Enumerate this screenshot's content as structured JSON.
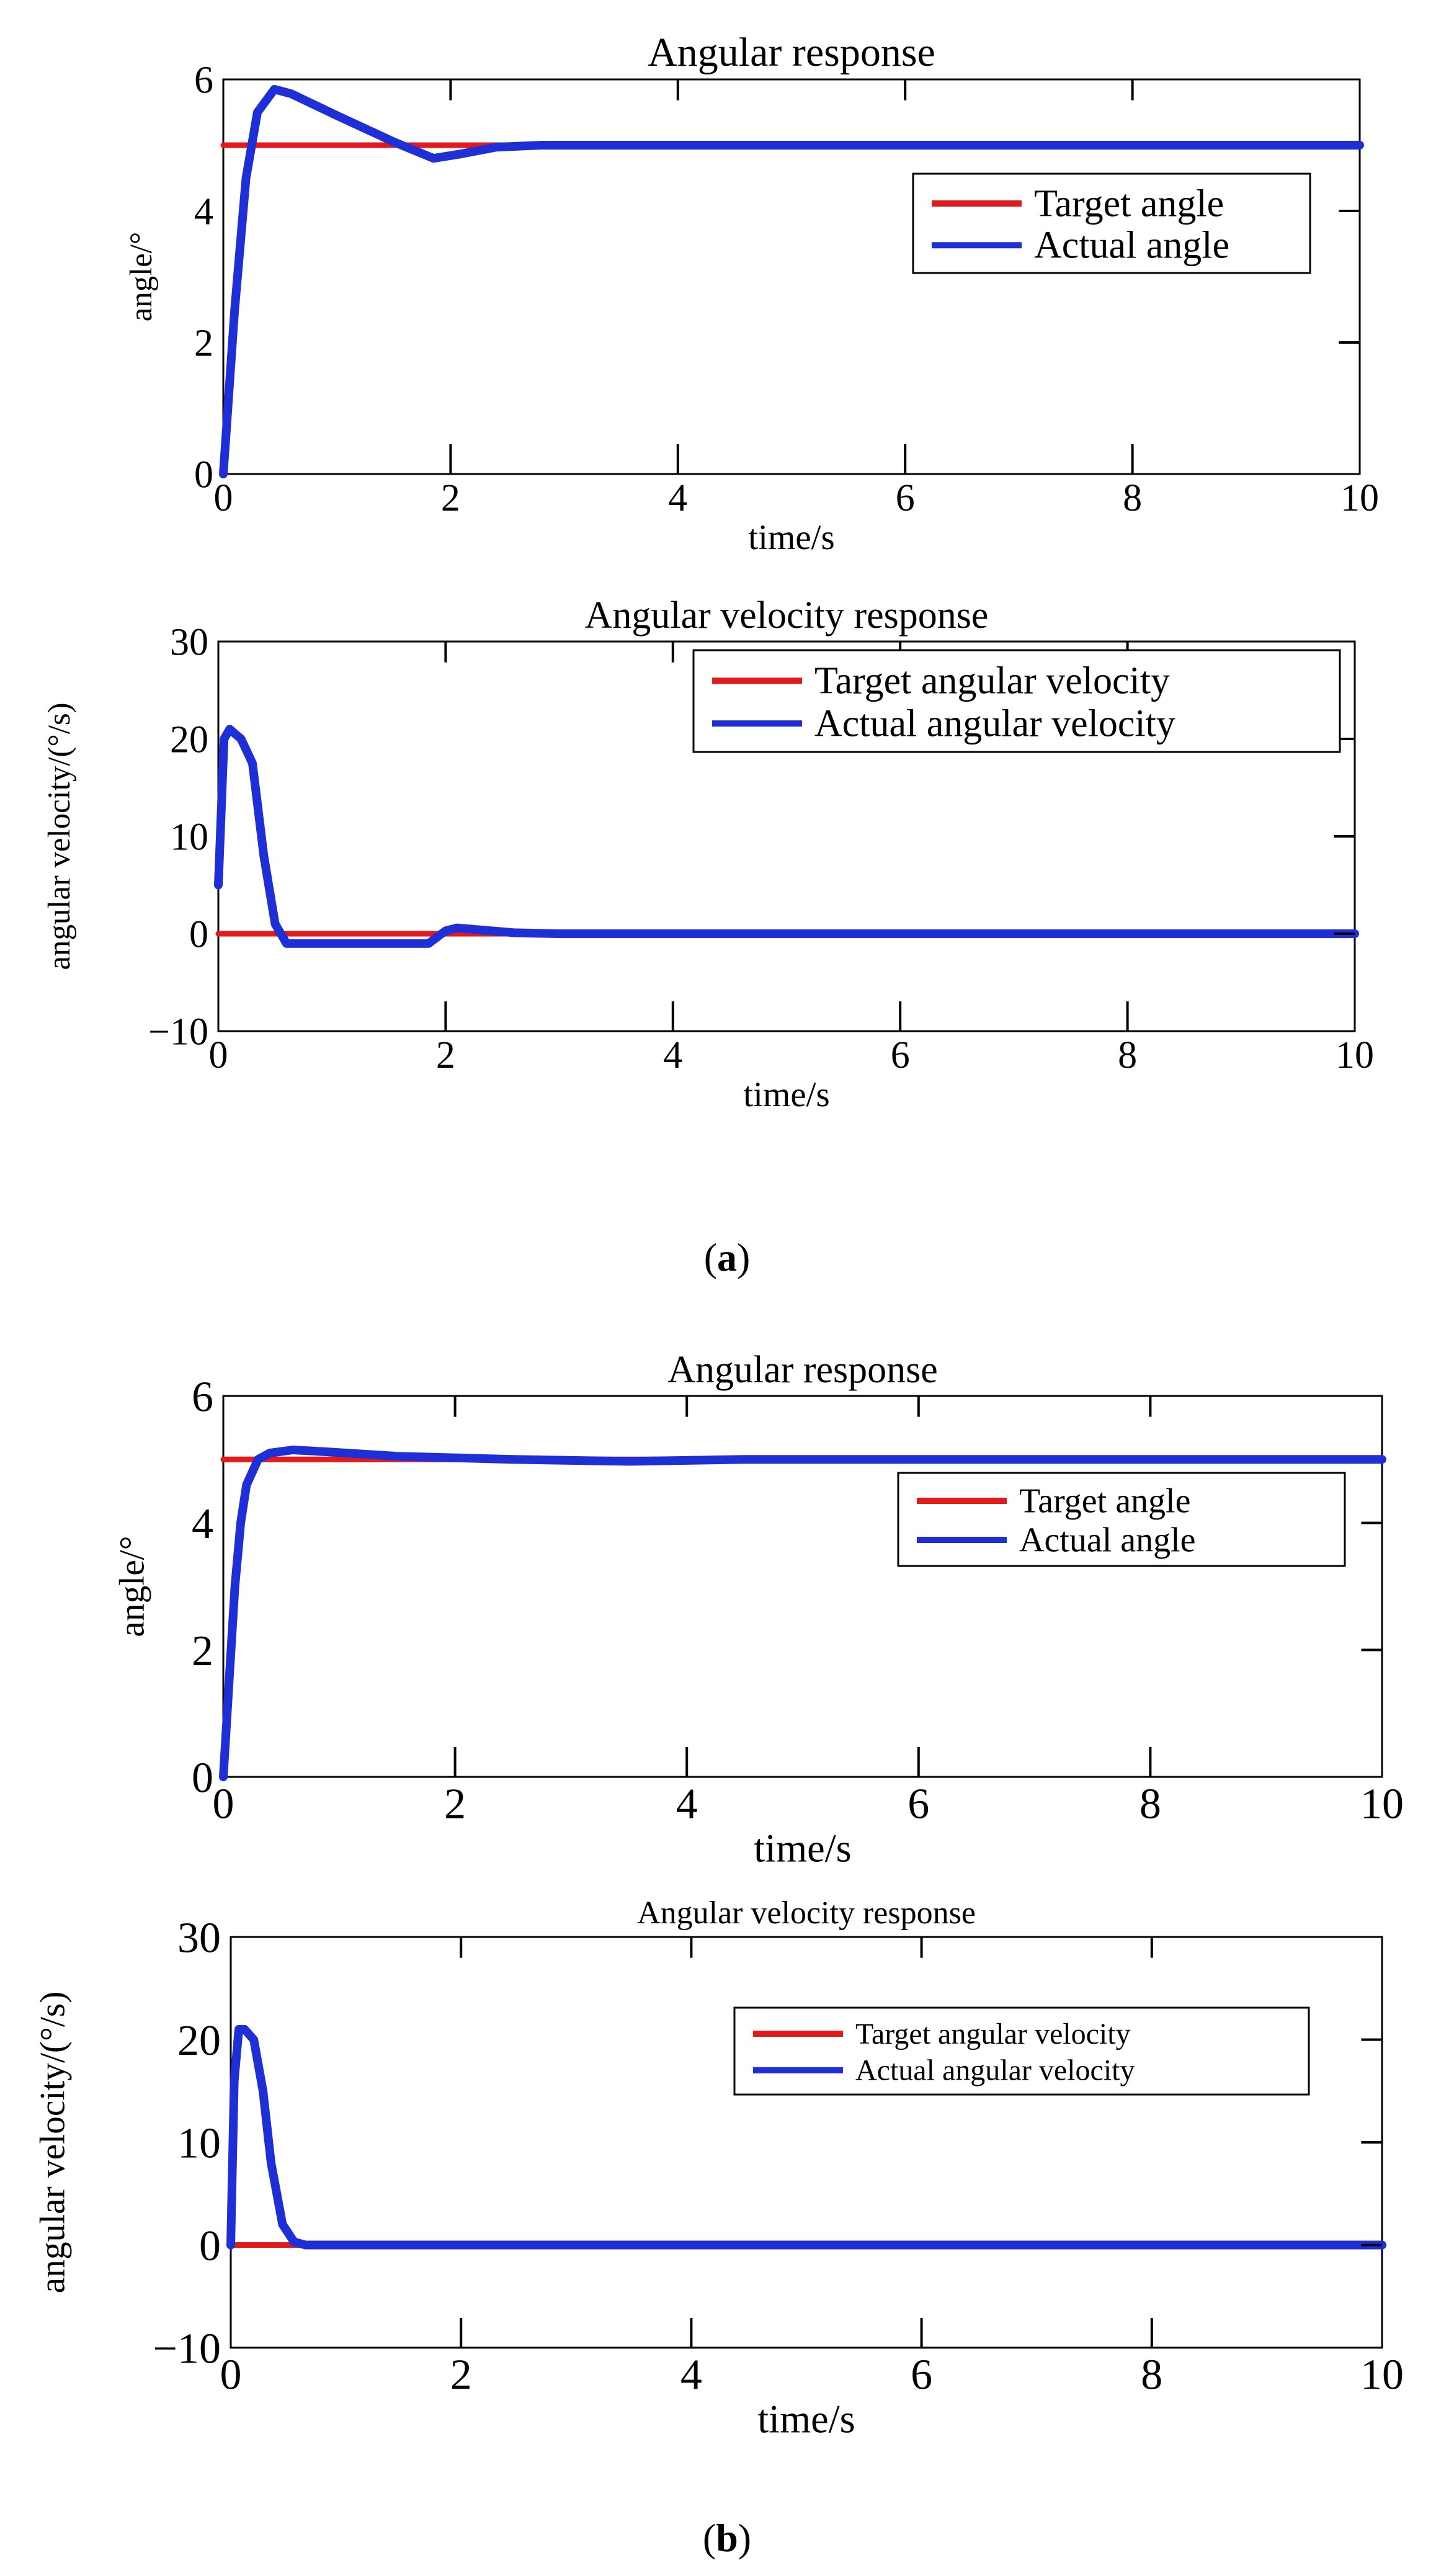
{
  "figure": {
    "panels": [
      {
        "label": "a",
        "open_paren": "(",
        "close_paren": ")"
      },
      {
        "label": "b",
        "open_paren": "(",
        "close_paren": ")"
      }
    ]
  },
  "colors": {
    "target": "#e31a1c",
    "actual": "#1f2fd6",
    "axes": "#000000",
    "background": "#ffffff"
  },
  "chart_data": [
    {
      "type": "line",
      "panel": "a",
      "title": "Angular response",
      "xlabel": "time/s",
      "ylabel": "angle/°",
      "xlim": [
        0,
        10
      ],
      "ylim": [
        0,
        6
      ],
      "xticks": [
        0,
        2,
        4,
        6,
        8,
        10
      ],
      "yticks": [
        0,
        2,
        4,
        6
      ],
      "xtick_labels": [
        "0",
        "2",
        "4",
        "6",
        "8",
        "10"
      ],
      "ytick_labels": [
        "0",
        "2",
        "4",
        "6"
      ],
      "grid": false,
      "legend_position": "top-right",
      "series": [
        {
          "name": "Target angle",
          "x": [
            0,
            10
          ],
          "y": [
            5,
            5
          ]
        },
        {
          "name": "Actual angle",
          "x": [
            0,
            0.1,
            0.2,
            0.3,
            0.45,
            0.6,
            1.0,
            1.5,
            1.85,
            2.1,
            2.4,
            2.8,
            4,
            6,
            8,
            10
          ],
          "y": [
            0,
            2.5,
            4.5,
            5.5,
            5.85,
            5.78,
            5.45,
            5.05,
            4.8,
            4.87,
            4.97,
            5.0,
            5.0,
            5.0,
            5.0,
            5.0
          ]
        }
      ]
    },
    {
      "type": "line",
      "panel": "a",
      "title": "Angular velocity response",
      "xlabel": "time/s",
      "ylabel": "angular velocity/(°/s)",
      "xlim": [
        0,
        10
      ],
      "ylim": [
        -10,
        30
      ],
      "xticks": [
        0,
        2,
        4,
        6,
        8,
        10
      ],
      "yticks": [
        -10,
        0,
        10,
        20,
        30
      ],
      "xtick_labels": [
        "0",
        "2",
        "4",
        "6",
        "8",
        "10"
      ],
      "ytick_labels": [
        "−10",
        "0",
        "10",
        "20",
        "30"
      ],
      "grid": false,
      "legend_position": "top-right",
      "series": [
        {
          "name": "Target angular velocity",
          "x": [
            0,
            10
          ],
          "y": [
            0,
            0
          ]
        },
        {
          "name": "Actual angular velocity",
          "x": [
            0,
            0.05,
            0.1,
            0.2,
            0.3,
            0.4,
            0.5,
            0.6,
            1.0,
            1.5,
            1.85,
            2.0,
            2.1,
            2.3,
            2.6,
            3.0,
            10
          ],
          "y": [
            5,
            20,
            21,
            20,
            17.5,
            8,
            1,
            -1,
            -1,
            -1,
            -1,
            0.3,
            0.6,
            0.4,
            0.1,
            0,
            0
          ]
        }
      ]
    },
    {
      "type": "line",
      "panel": "b",
      "title": "Angular response",
      "xlabel": "time/s",
      "ylabel": "angle/°",
      "xlim": [
        0,
        10
      ],
      "ylim": [
        0,
        6
      ],
      "xticks": [
        0,
        2,
        4,
        6,
        8,
        10
      ],
      "yticks": [
        0,
        2,
        4,
        6
      ],
      "xtick_labels": [
        "0",
        "2",
        "4",
        "6",
        "8",
        "10"
      ],
      "ytick_labels": [
        "0",
        "2",
        "4",
        "6"
      ],
      "grid": false,
      "legend_position": "right",
      "series": [
        {
          "name": "Target angle",
          "x": [
            0,
            10
          ],
          "y": [
            5,
            5
          ]
        },
        {
          "name": "Actual angle",
          "x": [
            0,
            0.05,
            0.1,
            0.15,
            0.2,
            0.3,
            0.4,
            0.6,
            0.9,
            1.5,
            2.5,
            3.5,
            4.5,
            10
          ],
          "y": [
            0,
            1.5,
            3.0,
            4.0,
            4.6,
            5.0,
            5.1,
            5.15,
            5.12,
            5.05,
            5.0,
            4.97,
            5.0,
            5.0
          ]
        }
      ]
    },
    {
      "type": "line",
      "panel": "b",
      "title": "Angular velocity response",
      "xlabel": "time/s",
      "ylabel": "angular velocity/(°/s)",
      "xlim": [
        0,
        10
      ],
      "ylim": [
        -10,
        30
      ],
      "xticks": [
        0,
        2,
        4,
        6,
        8,
        10
      ],
      "yticks": [
        -10,
        0,
        10,
        20,
        30
      ],
      "xtick_labels": [
        "0",
        "2",
        "4",
        "6",
        "8",
        "10"
      ],
      "ytick_labels": [
        "−10",
        "0",
        "10",
        "20",
        "30"
      ],
      "grid": false,
      "legend_position": "top-right",
      "series": [
        {
          "name": "Target angular velocity",
          "x": [
            0,
            10
          ],
          "y": [
            0,
            0
          ]
        },
        {
          "name": "Actual angular velocity",
          "x": [
            0,
            0.03,
            0.07,
            0.12,
            0.2,
            0.28,
            0.35,
            0.45,
            0.55,
            0.65,
            10
          ],
          "y": [
            0,
            16,
            21,
            21,
            20,
            15,
            8,
            2,
            0.3,
            0,
            0
          ]
        }
      ]
    }
  ]
}
